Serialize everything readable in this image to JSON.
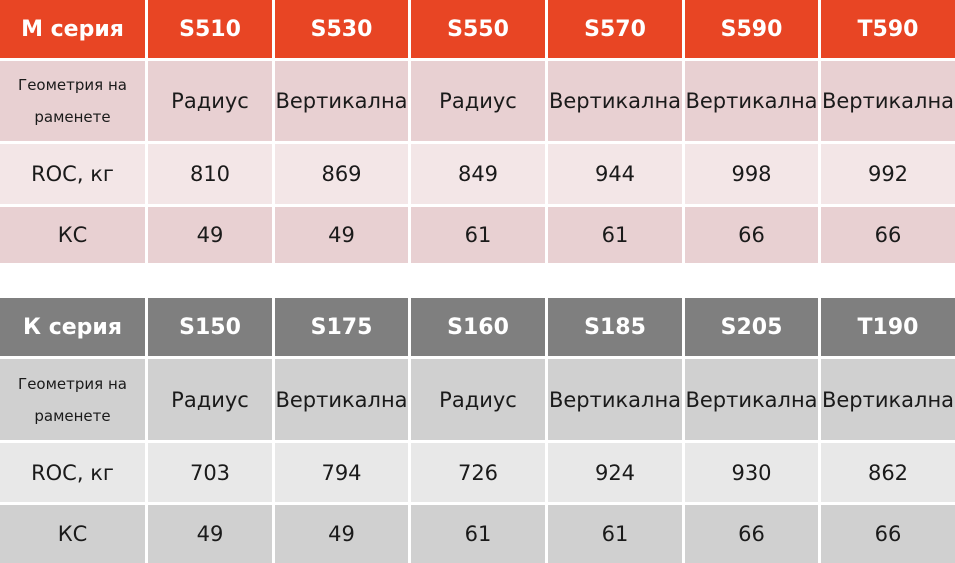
{
  "tables": [
    {
      "header": [
        "М серия",
        "S510",
        "S530",
        "S550",
        "S570",
        "S590",
        "T590"
      ],
      "rows": [
        [
          "Геометрия на раменете",
          "Радиус",
          "Вертикална",
          "Радиус",
          "Вертикална",
          "Вертикална",
          "Вертикална"
        ],
        [
          "ROC, кг",
          "810",
          "869",
          "849",
          "944",
          "998",
          "992"
        ],
        [
          "КС",
          "49",
          "49",
          "61",
          "61",
          "66",
          "66"
        ]
      ]
    },
    {
      "header": [
        "К серия",
        "S150",
        "S175",
        "S160",
        "S185",
        "S205",
        "T190"
      ],
      "rows": [
        [
          "Геометрия на раменете",
          "Радиус",
          "Вертикална",
          "Радиус",
          "Вертикална",
          "Вертикална",
          "Вертикална"
        ],
        [
          "ROC, кг",
          "703",
          "794",
          "726",
          "924",
          "930",
          "862"
        ],
        [
          "КС",
          "49",
          "49",
          "61",
          "61",
          "66",
          "66"
        ]
      ]
    }
  ]
}
